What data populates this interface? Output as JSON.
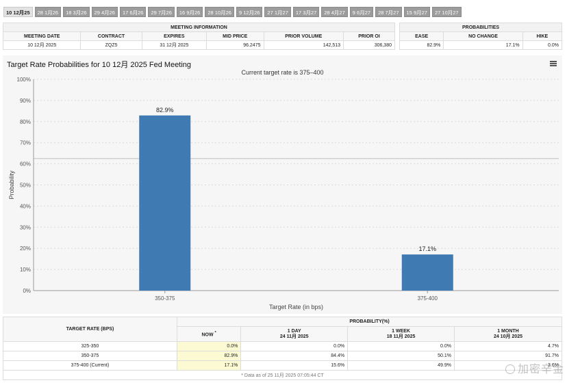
{
  "tabs": [
    "10 12月25",
    "28 1月26",
    "18 3月26",
    "29 4月26",
    "17 6月26",
    "29 7月26",
    "16 9月26",
    "28 10月26",
    "9 12月26",
    "27 1月27",
    "17 3月27",
    "28 4月27",
    "9 6月27",
    "28 7月27",
    "15 9月27",
    "27 10月27"
  ],
  "meeting_info": {
    "header": "MEETING INFORMATION",
    "columns": [
      "MEETING DATE",
      "CONTRACT",
      "EXPIRES",
      "MID PRICE",
      "PRIOR VOLUME",
      "PRIOR OI"
    ],
    "row": [
      "10 12月 2025",
      "ZQZ5",
      "31 12月 2025",
      "96.2475",
      "142,513",
      "306,380"
    ]
  },
  "probabilities": {
    "header": "PROBABILITIES",
    "columns": [
      "EASE",
      "NO CHANGE",
      "HIKE"
    ],
    "row": [
      "82.9%",
      "17.1%",
      "0.0%"
    ]
  },
  "chart": {
    "title": "Target Rate Probabilities for 10 12月 2025 Fed Meeting",
    "subtitle": "Current target rate is 375–400",
    "logo": "Q"
  },
  "chart_data": {
    "type": "bar",
    "categories": [
      "350-375",
      "375-400"
    ],
    "values": [
      82.9,
      17.1
    ],
    "data_labels": [
      "82.9%",
      "17.1%"
    ],
    "xlabel": "Target Rate (in bps)",
    "ylabel": "Probability",
    "ylim": [
      0,
      100
    ],
    "yticks": [
      "0%",
      "10%",
      "20%",
      "30%",
      "40%",
      "50%",
      "60%",
      "70%",
      "80%",
      "90%",
      "100%"
    ],
    "bar_color": "#3f7ab3"
  },
  "bottom_table": {
    "col_rate": "TARGET RATE (BPS)",
    "col_prob": "PROBABILITY(%)",
    "sub": [
      {
        "label": "NOW",
        "date": ""
      },
      {
        "label": "1 DAY",
        "date": "24 11月 2025"
      },
      {
        "label": "1 WEEK",
        "date": "18 11月 2025"
      },
      {
        "label": "1 MONTH",
        "date": "24 10月 2025"
      }
    ],
    "rows": [
      {
        "rate": "325-350",
        "now": "0.0%",
        "day": "0.0%",
        "week": "0.0%",
        "month": "4.7%"
      },
      {
        "rate": "350-375",
        "now": "82.9%",
        "day": "84.4%",
        "week": "50.1%",
        "month": "91.7%"
      },
      {
        "rate": "375-400 (Current)",
        "now": "17.1%",
        "day": "15.6%",
        "week": "49.9%",
        "month": "3.6%"
      }
    ],
    "footnote": "* Data as of 25 11月 2025 07:05:44 CT"
  },
  "watermark": "加密辛金"
}
